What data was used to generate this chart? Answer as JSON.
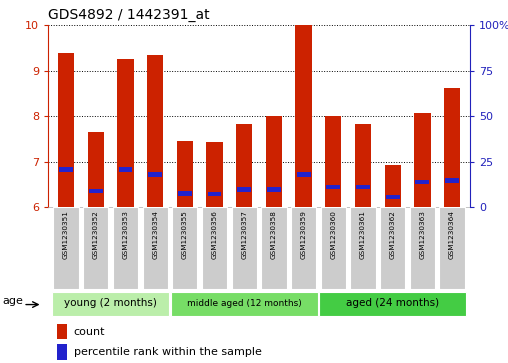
{
  "title": "GDS4892 / 1442391_at",
  "samples": [
    "GSM1230351",
    "GSM1230352",
    "GSM1230353",
    "GSM1230354",
    "GSM1230355",
    "GSM1230356",
    "GSM1230357",
    "GSM1230358",
    "GSM1230359",
    "GSM1230360",
    "GSM1230361",
    "GSM1230362",
    "GSM1230363",
    "GSM1230364"
  ],
  "counts": [
    9.4,
    7.65,
    9.25,
    9.35,
    7.45,
    7.42,
    7.82,
    8.0,
    10.0,
    8.0,
    7.82,
    6.92,
    8.08,
    8.62
  ],
  "percentiles": [
    6.82,
    6.35,
    6.82,
    6.72,
    6.3,
    6.28,
    6.38,
    6.38,
    6.72,
    6.44,
    6.44,
    6.22,
    6.55,
    6.58
  ],
  "ymin": 6.0,
  "ymax": 10.0,
  "y_ticks_left": [
    6,
    7,
    8,
    9,
    10
  ],
  "y_ticks_right": [
    0,
    25,
    50,
    75,
    100
  ],
  "bar_color": "#cc2200",
  "percentile_color": "#2222cc",
  "groups": [
    {
      "label": "young (2 months)",
      "start": 0,
      "end": 4,
      "color": "#bbeeaa"
    },
    {
      "label": "middle aged (12 months)",
      "start": 4,
      "end": 9,
      "color": "#77dd66"
    },
    {
      "label": "aged (24 months)",
      "start": 9,
      "end": 14,
      "color": "#44cc44"
    }
  ],
  "left_axis_color": "#cc2200",
  "right_axis_color": "#2222bb",
  "grid_color": "#000000",
  "legend_count_label": "count",
  "legend_percentile_label": "percentile rank within the sample",
  "age_label": "age",
  "sample_box_color": "#cccccc",
  "bar_width": 0.55
}
